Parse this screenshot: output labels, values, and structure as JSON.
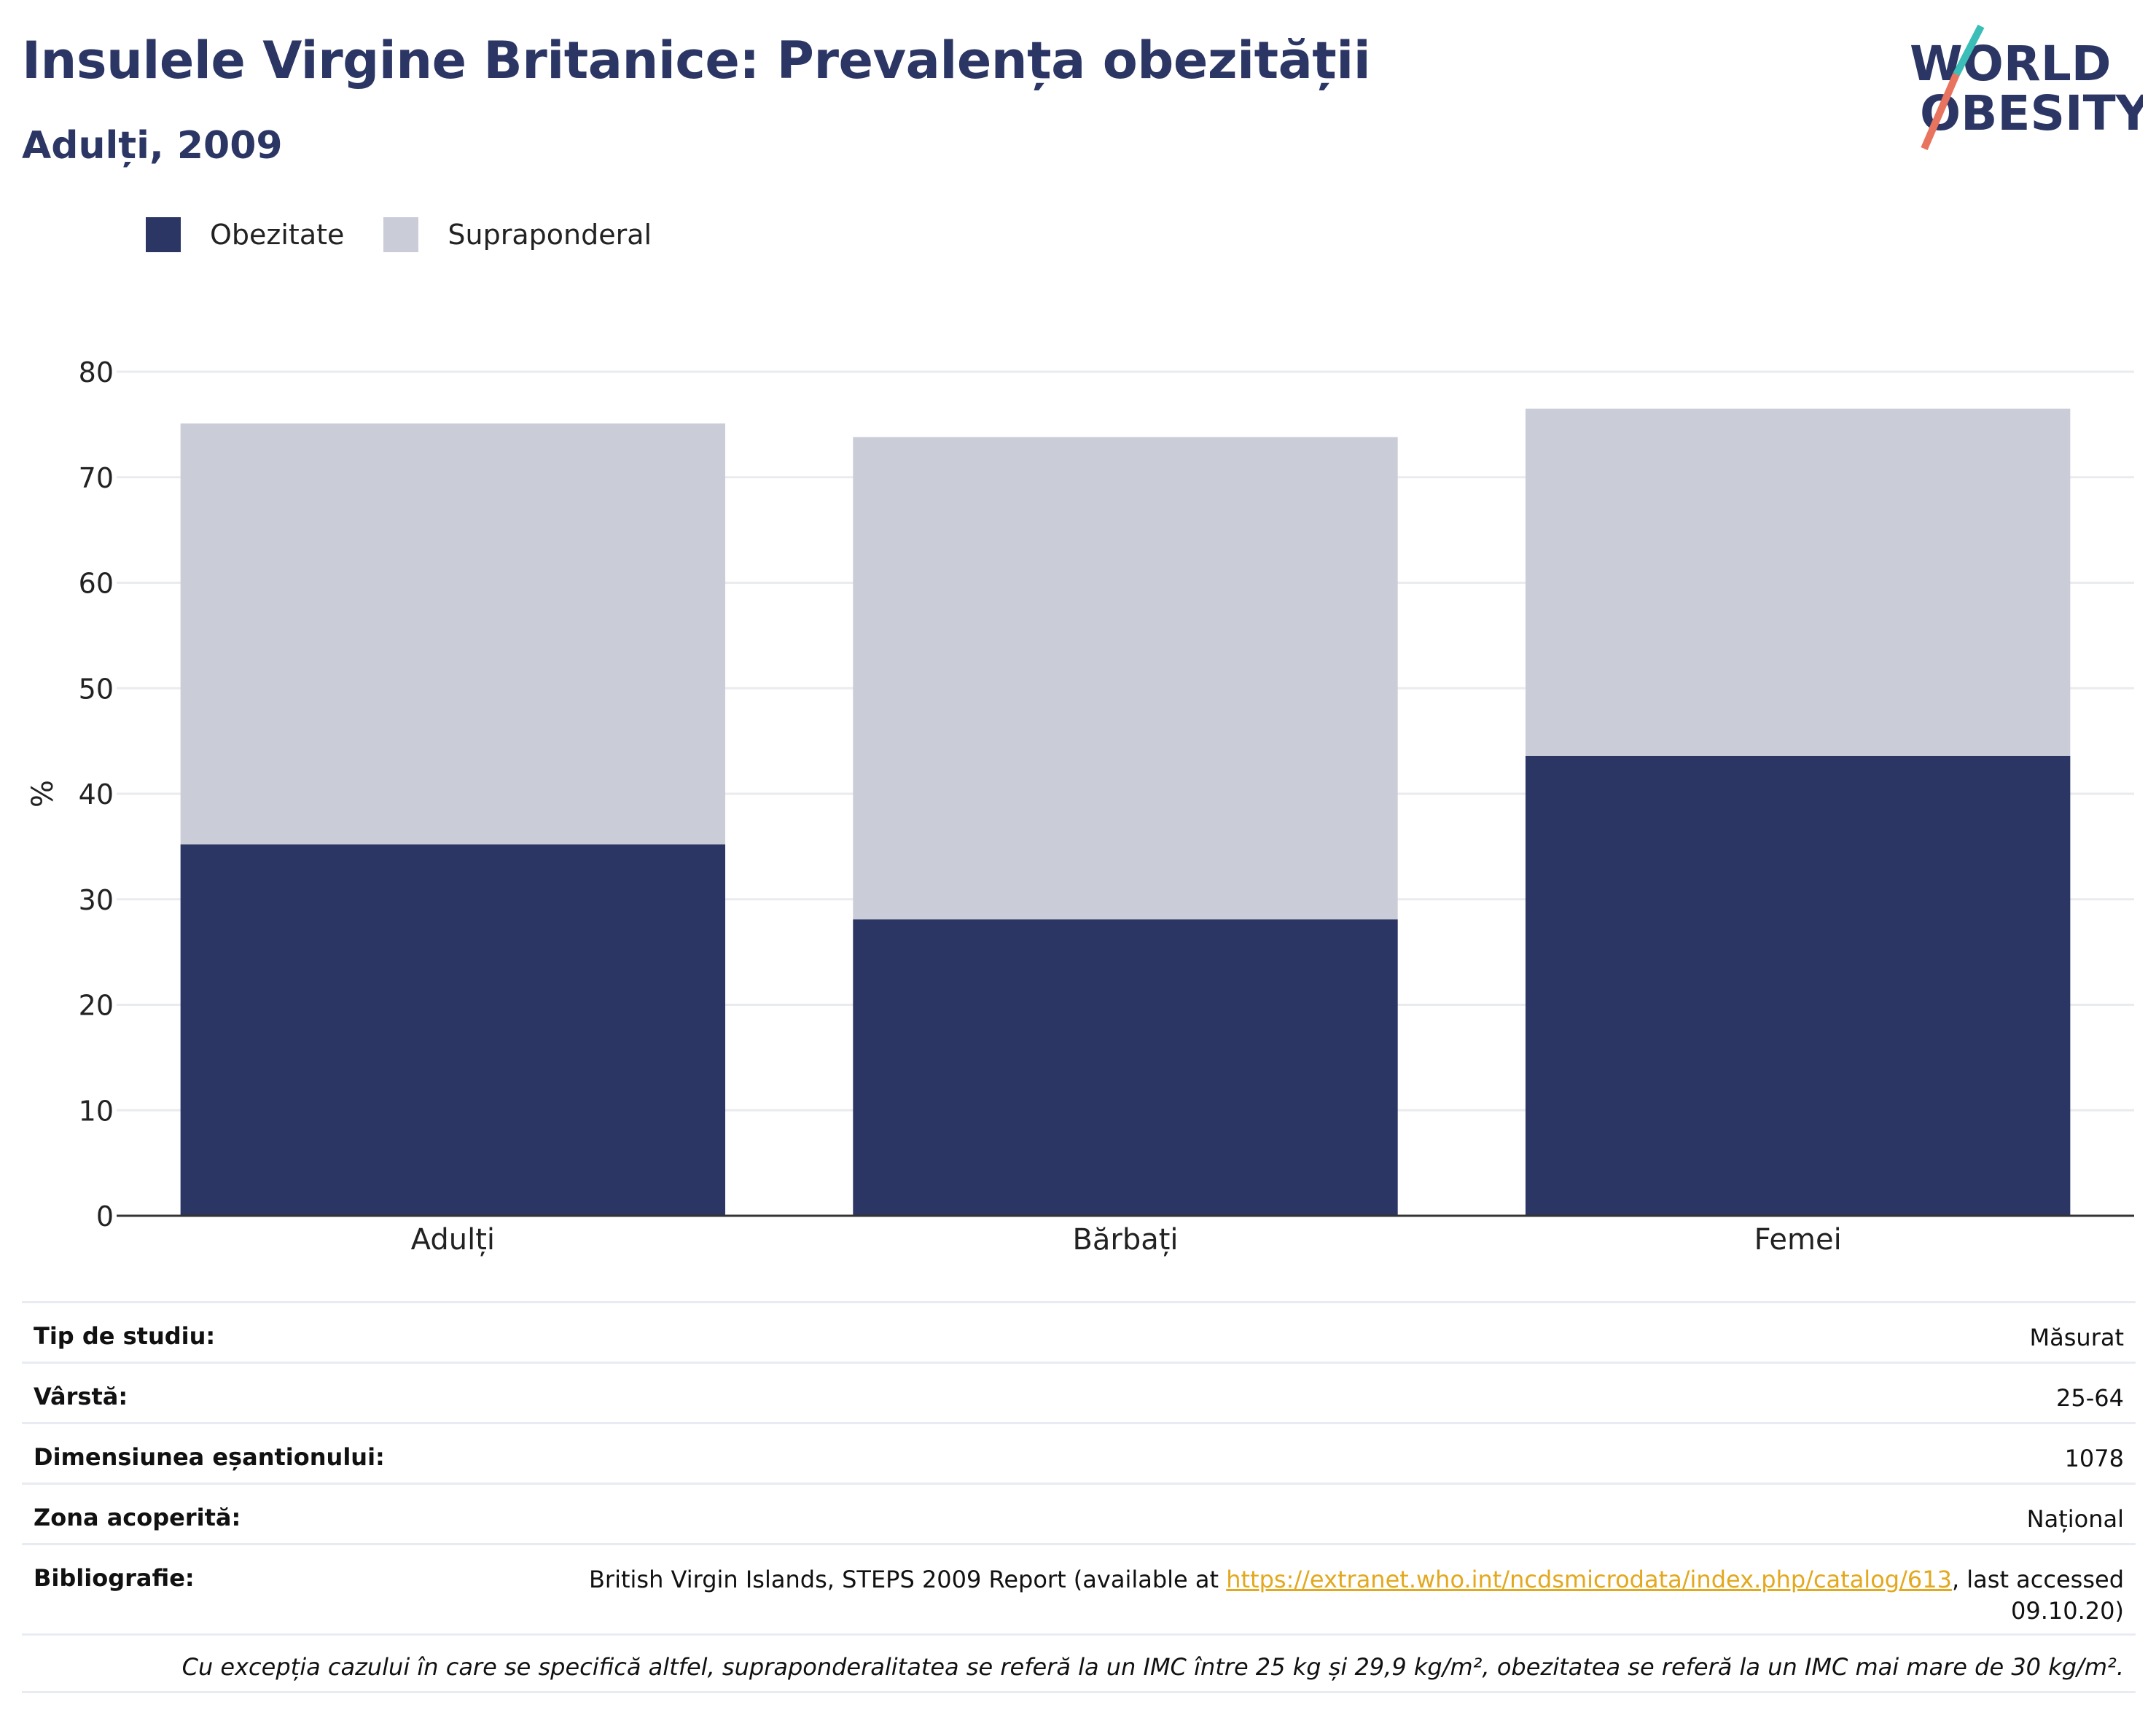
{
  "header": {
    "title": "Insulele Virgine Britanice: Prevalența obezității",
    "subtitle": "Adulți, 2009"
  },
  "logo": {
    "line1": "WORLD",
    "line2": "OBESITY"
  },
  "colors": {
    "obesity": "#2b3664",
    "overweight": "#cacdd8",
    "title": "#2b3664",
    "link": "#e2a81e",
    "logo_teal": "#3bbdb8",
    "logo_coral": "#e8735f"
  },
  "chart_data": {
    "type": "bar",
    "stacked": true,
    "categories": [
      "Adulți",
      "Bărbați",
      "Femei"
    ],
    "series": [
      {
        "name": "Obezitate",
        "values": [
          35.2,
          28.1,
          43.6
        ]
      },
      {
        "name": "Supraponderal",
        "values": [
          39.9,
          45.7,
          32.9
        ]
      }
    ],
    "ylabel": "%",
    "ylim": [
      0,
      80
    ],
    "yticks": [
      0,
      10,
      20,
      30,
      40,
      50,
      60,
      70,
      80
    ],
    "grid": true,
    "legend": "top-left"
  },
  "meta": {
    "study_type": {
      "label": "Tip de studiu:",
      "value": "Măsurat"
    },
    "age": {
      "label": "Vârstă:",
      "value": "25-64"
    },
    "sample": {
      "label": "Dimensiunea eșantionului:",
      "value": "1078"
    },
    "area": {
      "label": "Zona acoperită:",
      "value": "Național"
    },
    "bibliography": {
      "label": "Bibliografie:",
      "before": "British Virgin Islands, STEPS 2009 Report (available at ",
      "link": "https://extranet.who.int/ncdsmicrodata/index.php/catalog/613",
      "after": ", last accessed",
      "line2": "09.10.20)"
    },
    "note": "Cu excepția cazului în care se specifică altfel, supraponderalitatea se referă la un IMC între 25 kg și 29,9 kg/m², obezitatea se referă la un IMC mai mare de 30 kg/m²."
  }
}
